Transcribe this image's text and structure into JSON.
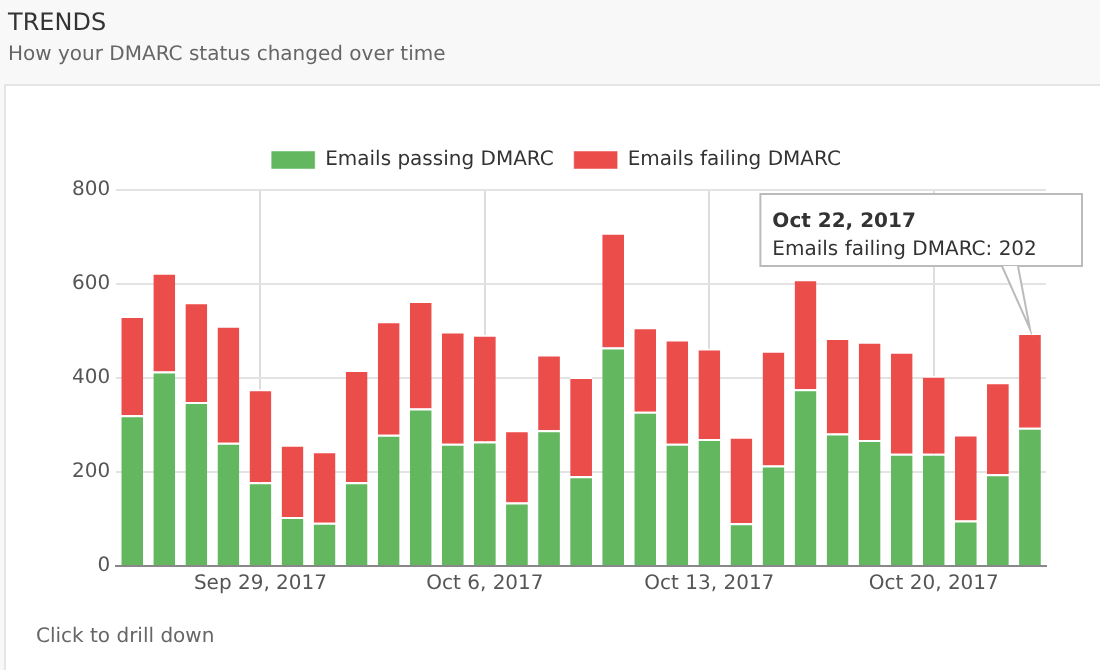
{
  "chart_data": {
    "type": "bar",
    "title": "TRENDS",
    "subtitle": "How your DMARC status changed over time",
    "categories": [
      null,
      null,
      null,
      null,
      "Sep 29, 2017",
      null,
      null,
      null,
      null,
      null,
      null,
      "Oct 6, 2017",
      null,
      null,
      null,
      null,
      null,
      null,
      "Oct 13, 2017",
      null,
      null,
      null,
      null,
      null,
      null,
      "Oct 20, 2017",
      null,
      null,
      null
    ],
    "stacked": true,
    "series": [
      {
        "name": "Emails passing DMARC",
        "color": "#62b75f",
        "values": [
          321,
          414,
          349,
          262,
          178,
          104,
          92,
          178,
          279,
          335,
          260,
          265,
          135,
          289,
          191,
          465,
          328,
          260,
          270,
          91,
          214,
          376,
          282,
          268,
          239,
          239,
          97,
          195,
          294
        ]
      },
      {
        "name": "Emails failing DMARC",
        "color": "#eb4d4b",
        "values": [
          211,
          210,
          212,
          249,
          198,
          154,
          152,
          239,
          242,
          229,
          239,
          227,
          154,
          161,
          211,
          244,
          180,
          222,
          193,
          184,
          244,
          234,
          203,
          209,
          217,
          166,
          183,
          196,
          202
        ]
      }
    ],
    "ylim": [
      0,
      800
    ],
    "yticks": [
      0,
      200,
      400,
      600,
      800
    ],
    "grid": true,
    "legend": "top",
    "annotations": [
      "Oct 22, 2017\nEmails failing DMARC: 202",
      "Click to drill down"
    ]
  }
}
